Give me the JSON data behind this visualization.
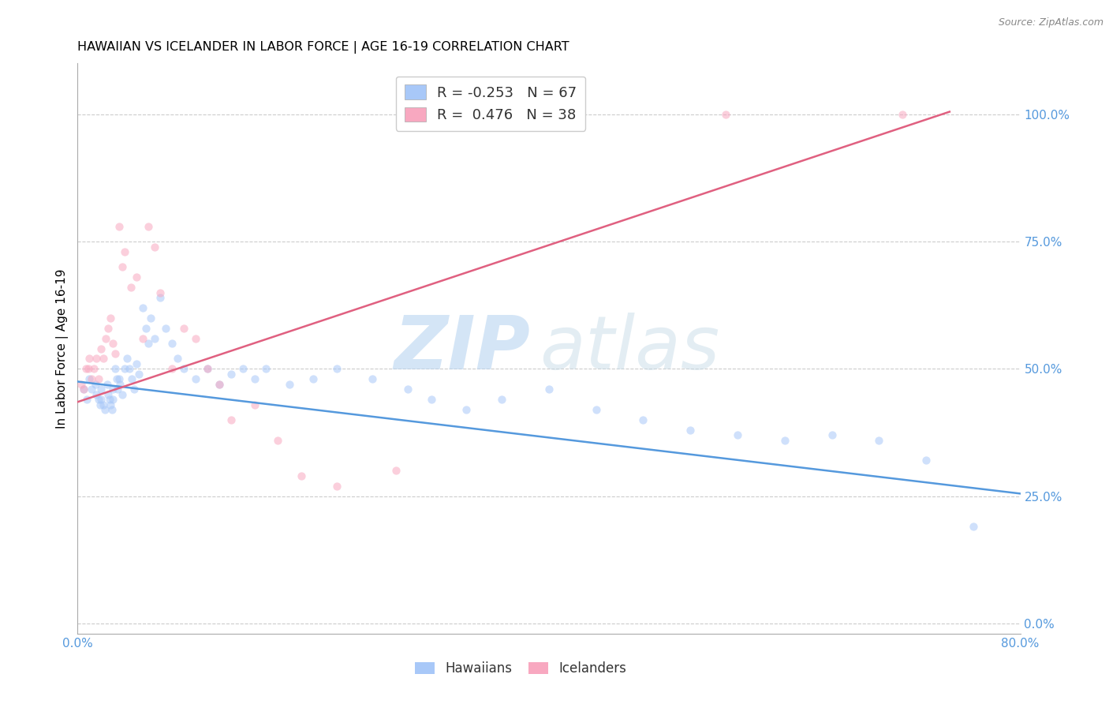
{
  "title": "HAWAIIAN VS ICELANDER IN LABOR FORCE | AGE 16-19 CORRELATION CHART",
  "source": "Source: ZipAtlas.com",
  "ylabel_label": "In Labor Force | Age 16-19",
  "xlim": [
    0.0,
    0.8
  ],
  "ylim": [
    -0.02,
    1.1
  ],
  "watermark_top": "ZIP",
  "watermark_bot": "atlas",
  "hawaiian_color": "#a8c8f8",
  "icelander_color": "#f8a8c0",
  "hawaiian_R": -0.253,
  "hawaiian_N": 67,
  "icelander_R": 0.476,
  "icelander_N": 38,
  "blue_line": {
    "x0": 0.0,
    "y0": 0.475,
    "x1": 0.8,
    "y1": 0.255
  },
  "pink_line": {
    "x0": 0.0,
    "y0": 0.435,
    "x1": 0.74,
    "y1": 1.005
  },
  "grid_color": "#cccccc",
  "bg_color": "#ffffff",
  "dot_size": 55,
  "dot_alpha": 0.55,
  "line_width": 1.8,
  "hawaiian_x": [
    0.005,
    0.008,
    0.01,
    0.012,
    0.015,
    0.016,
    0.018,
    0.019,
    0.02,
    0.02,
    0.022,
    0.023,
    0.025,
    0.026,
    0.027,
    0.028,
    0.029,
    0.03,
    0.03,
    0.032,
    0.033,
    0.034,
    0.035,
    0.036,
    0.038,
    0.04,
    0.042,
    0.044,
    0.046,
    0.048,
    0.05,
    0.052,
    0.055,
    0.058,
    0.06,
    0.062,
    0.065,
    0.07,
    0.075,
    0.08,
    0.085,
    0.09,
    0.1,
    0.11,
    0.12,
    0.13,
    0.14,
    0.15,
    0.16,
    0.18,
    0.2,
    0.22,
    0.25,
    0.28,
    0.3,
    0.33,
    0.36,
    0.4,
    0.44,
    0.48,
    0.52,
    0.56,
    0.6,
    0.64,
    0.68,
    0.72,
    0.76
  ],
  "hawaiian_y": [
    0.46,
    0.44,
    0.48,
    0.46,
    0.47,
    0.45,
    0.44,
    0.43,
    0.46,
    0.44,
    0.43,
    0.42,
    0.47,
    0.45,
    0.44,
    0.43,
    0.42,
    0.46,
    0.44,
    0.5,
    0.48,
    0.46,
    0.48,
    0.47,
    0.45,
    0.5,
    0.52,
    0.5,
    0.48,
    0.46,
    0.51,
    0.49,
    0.62,
    0.58,
    0.55,
    0.6,
    0.56,
    0.64,
    0.58,
    0.55,
    0.52,
    0.5,
    0.48,
    0.5,
    0.47,
    0.49,
    0.5,
    0.48,
    0.5,
    0.47,
    0.48,
    0.5,
    0.48,
    0.46,
    0.44,
    0.42,
    0.44,
    0.46,
    0.42,
    0.4,
    0.38,
    0.37,
    0.36,
    0.37,
    0.36,
    0.32,
    0.19
  ],
  "icelander_x": [
    0.003,
    0.005,
    0.007,
    0.009,
    0.01,
    0.012,
    0.014,
    0.016,
    0.018,
    0.02,
    0.022,
    0.024,
    0.026,
    0.028,
    0.03,
    0.032,
    0.035,
    0.038,
    0.04,
    0.045,
    0.05,
    0.055,
    0.06,
    0.065,
    0.07,
    0.08,
    0.09,
    0.1,
    0.11,
    0.12,
    0.13,
    0.15,
    0.17,
    0.19,
    0.22,
    0.27,
    0.55,
    0.7
  ],
  "icelander_y": [
    0.47,
    0.46,
    0.5,
    0.5,
    0.52,
    0.48,
    0.5,
    0.52,
    0.48,
    0.54,
    0.52,
    0.56,
    0.58,
    0.6,
    0.55,
    0.53,
    0.78,
    0.7,
    0.73,
    0.66,
    0.68,
    0.56,
    0.78,
    0.74,
    0.65,
    0.5,
    0.58,
    0.56,
    0.5,
    0.47,
    0.4,
    0.43,
    0.36,
    0.29,
    0.27,
    0.3,
    1.0,
    1.0
  ]
}
